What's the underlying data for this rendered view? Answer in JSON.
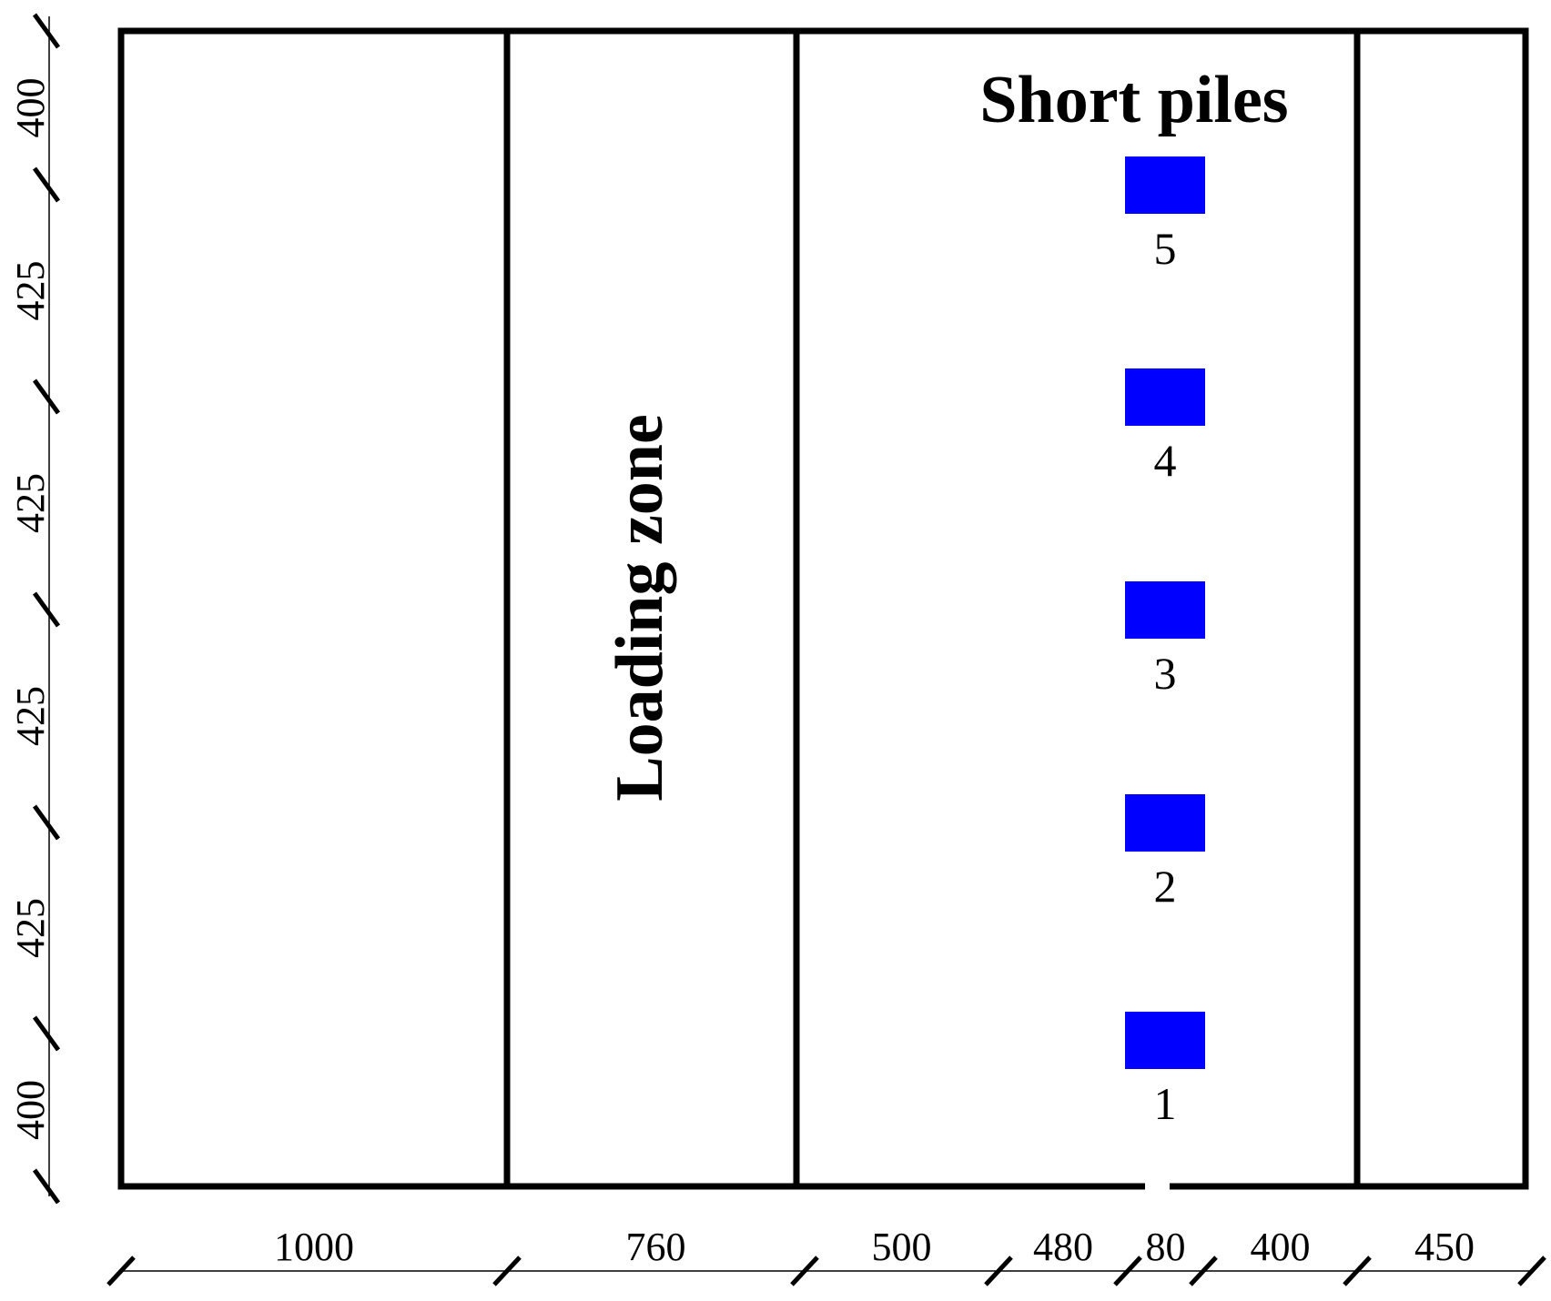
{
  "zone_label": "Loading zone",
  "piles_label": "Short piles",
  "pile_color": "#0000ff",
  "bottom_dimensions": [
    "1000",
    "760",
    "500",
    "480",
    "80",
    "400",
    "450"
  ],
  "side_dimensions": [
    "400",
    "425",
    "425",
    "425",
    "425",
    "400"
  ],
  "pile_numbers": [
    "1",
    "2",
    "3",
    "4",
    "5"
  ]
}
